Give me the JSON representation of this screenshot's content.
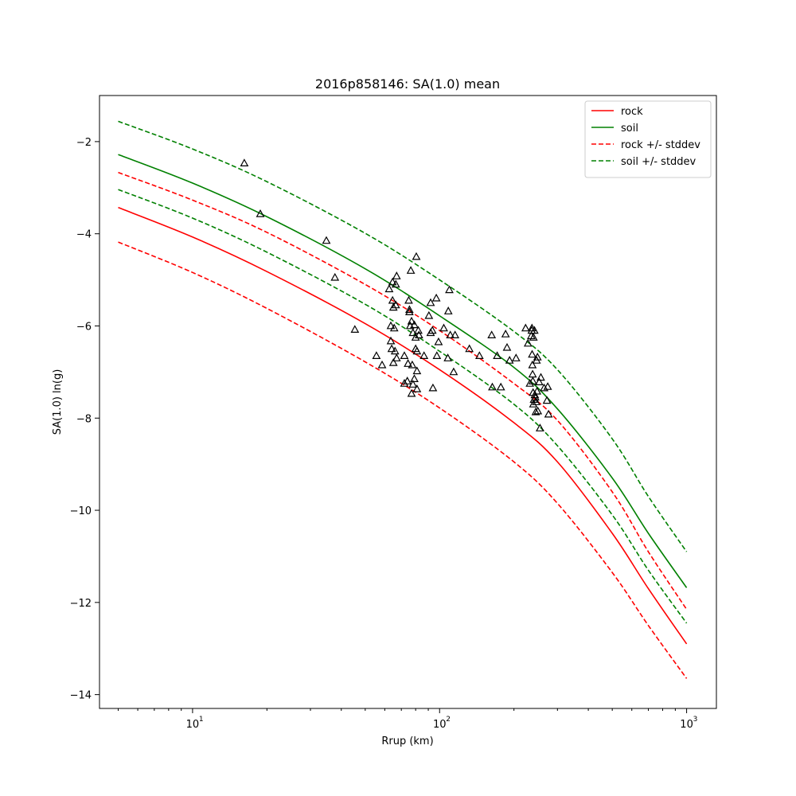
{
  "chart_data": {
    "type": "line",
    "title": "2016p858146: SA(1.0) mean",
    "xlabel": "Rrup (km)",
    "ylabel": "SA(1.0) ln(g)",
    "xscale": "log",
    "xlim": [
      4.2,
      1320
    ],
    "ylim": [
      -14.3,
      -1.0
    ],
    "x_ticks": [
      10,
      100,
      1000
    ],
    "x_tick_labels": [
      "10",
      "10",
      "10"
    ],
    "x_tick_exponents": [
      "1",
      "2",
      "3"
    ],
    "y_ticks": [
      -2,
      -4,
      -6,
      -8,
      -10,
      -12,
      -14
    ],
    "y_tick_labels": [
      "−2",
      "−4",
      "−6",
      "−8",
      "−10",
      "−12",
      "−14"
    ],
    "legend_position": "top-right",
    "series": [
      {
        "name": "rock",
        "style": "solid",
        "color": "#ff0000",
        "x": [
          5,
          10,
          20,
          50,
          100,
          200,
          300,
          500,
          700,
          1000
        ],
        "y": [
          -3.43,
          -4.07,
          -4.82,
          -5.95,
          -6.95,
          -8.1,
          -8.95,
          -10.5,
          -11.7,
          -12.9
        ]
      },
      {
        "name": "soil",
        "style": "solid",
        "color": "#008000",
        "x": [
          5,
          10,
          20,
          50,
          100,
          200,
          300,
          500,
          700,
          1000
        ],
        "y": [
          -2.28,
          -2.9,
          -3.63,
          -4.76,
          -5.78,
          -6.9,
          -7.8,
          -9.3,
          -10.5,
          -11.68
        ]
      },
      {
        "name": "rock +/- stddev",
        "style": "dashed",
        "color": "#ff0000",
        "x": [
          5,
          10,
          20,
          50,
          100,
          200,
          300,
          500,
          700,
          1000
        ],
        "y": [
          -2.67,
          -3.27,
          -3.97,
          -5.1,
          -6.1,
          -7.25,
          -8.05,
          -9.6,
          -10.9,
          -12.15
        ]
      },
      {
        "name": "rock +/- stddev",
        "style": "dashed",
        "color": "#ff0000",
        "show_in_legend": false,
        "x": [
          5,
          10,
          20,
          50,
          100,
          200,
          300,
          500,
          700,
          1000
        ],
        "y": [
          -4.18,
          -4.84,
          -5.62,
          -6.78,
          -7.78,
          -8.95,
          -9.85,
          -11.35,
          -12.5,
          -13.65
        ]
      },
      {
        "name": "soil +/- stddev",
        "style": "dashed",
        "color": "#008000",
        "x": [
          5,
          10,
          20,
          50,
          100,
          200,
          300,
          500,
          700,
          1000
        ],
        "y": [
          -1.56,
          -2.16,
          -2.87,
          -3.99,
          -5.0,
          -6.12,
          -6.95,
          -8.45,
          -9.7,
          -10.9
        ]
      },
      {
        "name": "soil +/- stddev",
        "style": "dashed",
        "color": "#008000",
        "show_in_legend": false,
        "x": [
          5,
          10,
          20,
          50,
          100,
          200,
          300,
          500,
          700,
          1000
        ],
        "y": [
          -3.04,
          -3.66,
          -4.4,
          -5.53,
          -6.55,
          -7.7,
          -8.6,
          -10.1,
          -11.3,
          -12.45
        ]
      }
    ],
    "observations": {
      "marker": "triangle",
      "color": "#000000",
      "points": [
        [
          16.2,
          -2.47
        ],
        [
          18.8,
          -3.57
        ],
        [
          34.8,
          -4.15
        ],
        [
          37.7,
          -4.95
        ],
        [
          45.4,
          -6.08
        ],
        [
          55.5,
          -6.65
        ],
        [
          58.5,
          -6.85
        ],
        [
          62.5,
          -5.2
        ],
        [
          63.5,
          -6.0
        ],
        [
          63.5,
          -6.33
        ],
        [
          64,
          -6.5
        ],
        [
          64.5,
          -5.05
        ],
        [
          64.5,
          -5.45
        ],
        [
          65,
          -5.6
        ],
        [
          65,
          -6.8
        ],
        [
          65.5,
          -6.05
        ],
        [
          66,
          -6.55
        ],
        [
          66.5,
          -5.1
        ],
        [
          66.5,
          -5.55
        ],
        [
          67,
          -4.92
        ],
        [
          67,
          -6.7
        ],
        [
          72,
          -7.25
        ],
        [
          72,
          -6.65
        ],
        [
          74,
          -7.2
        ],
        [
          74.5,
          -6.82
        ],
        [
          75,
          -5.45
        ],
        [
          75.5,
          -5.7
        ],
        [
          75.5,
          -5.65
        ],
        [
          76,
          -6.0
        ],
        [
          76.5,
          -4.8
        ],
        [
          77,
          -7.47
        ],
        [
          77,
          -5.9
        ],
        [
          77.5,
          -6.85
        ],
        [
          78,
          -7.27
        ],
        [
          78,
          -6.15
        ],
        [
          79,
          -5.98
        ],
        [
          79,
          -7.15
        ],
        [
          80,
          -6.25
        ],
        [
          80,
          -6.5
        ],
        [
          80.5,
          -4.5
        ],
        [
          81,
          -6.55
        ],
        [
          81,
          -7.37
        ],
        [
          81,
          -6.98
        ],
        [
          82,
          -6.1
        ],
        [
          82.5,
          -6.2
        ],
        [
          86.5,
          -6.65
        ],
        [
          90.5,
          -5.78
        ],
        [
          92,
          -6.15
        ],
        [
          92,
          -5.5
        ],
        [
          93.5,
          -6.1
        ],
        [
          94,
          -7.35
        ],
        [
          97,
          -5.4
        ],
        [
          97.5,
          -6.65
        ],
        [
          99,
          -6.35
        ],
        [
          104,
          -6.05
        ],
        [
          108,
          -6.7
        ],
        [
          108.5,
          -5.68
        ],
        [
          109.5,
          -5.22
        ],
        [
          110.5,
          -6.2
        ],
        [
          114,
          -7.0
        ],
        [
          115.5,
          -6.2
        ],
        [
          132,
          -6.5
        ],
        [
          145,
          -6.65
        ],
        [
          162.5,
          -6.2
        ],
        [
          163.5,
          -7.33
        ],
        [
          171,
          -6.65
        ],
        [
          177,
          -7.33
        ],
        [
          185,
          -6.18
        ],
        [
          187.5,
          -6.47
        ],
        [
          192,
          -6.75
        ],
        [
          204,
          -6.7
        ],
        [
          223,
          -6.05
        ],
        [
          228,
          -6.38
        ],
        [
          232,
          -7.25
        ],
        [
          235,
          -6.22
        ],
        [
          236,
          -6.1
        ],
        [
          236.5,
          -6.05
        ],
        [
          237,
          -6.62
        ],
        [
          237.5,
          -6.85
        ],
        [
          238,
          -7.05
        ],
        [
          238.5,
          -7.2
        ],
        [
          239,
          -7.45
        ],
        [
          239.5,
          -7.7
        ],
        [
          240,
          -6.25
        ],
        [
          241,
          -7.6
        ],
        [
          242,
          -6.1
        ],
        [
          243,
          -7.5
        ],
        [
          244,
          -7.55
        ],
        [
          245,
          -7.87
        ],
        [
          246,
          -7.65
        ],
        [
          247,
          -6.75
        ],
        [
          248,
          -7.42
        ],
        [
          249,
          -6.68
        ],
        [
          250,
          -7.85
        ],
        [
          253,
          -7.22
        ],
        [
          255,
          -8.22
        ],
        [
          257,
          -7.12
        ],
        [
          265,
          -7.35
        ],
        [
          272,
          -7.62
        ],
        [
          274,
          -7.32
        ],
        [
          276,
          -7.92
        ]
      ]
    }
  }
}
